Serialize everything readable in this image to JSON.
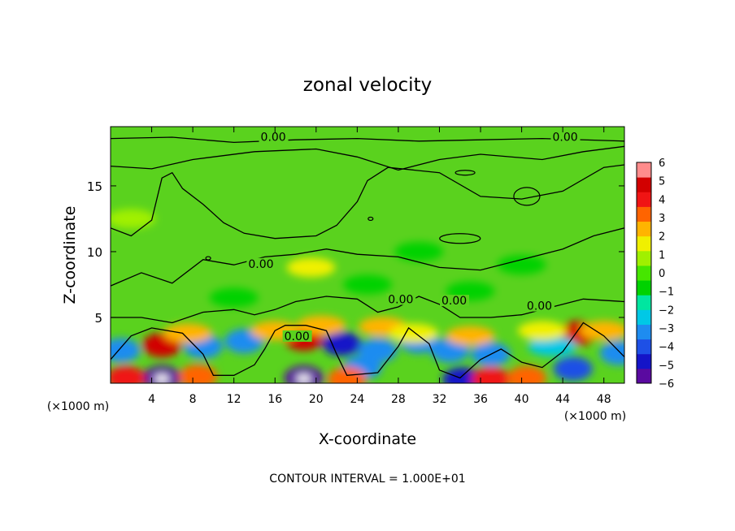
{
  "chart_data": {
    "type": "heatmap",
    "title": "zonal velocity",
    "xlabel": "X-coordinate",
    "ylabel": "Z-coordinate",
    "x_unit_left": "(×1000 m)",
    "x_unit_right": "(×1000 m)",
    "footer": "CONTOUR INTERVAL = 1.000E+01",
    "xlim": [
      0,
      50
    ],
    "ylim": [
      0,
      19.5
    ],
    "x_ticks": [
      4,
      8,
      12,
      16,
      20,
      24,
      28,
      32,
      36,
      40,
      44,
      48
    ],
    "y_ticks": [
      5,
      10,
      15
    ],
    "colorbar": {
      "min": -6,
      "max": 6,
      "labels": [
        "6",
        "5",
        "4",
        "3",
        "2",
        "1",
        "0",
        "−1",
        "−2",
        "−3",
        "−4",
        "−5",
        "−6"
      ],
      "colors": [
        "#5a0aa0",
        "#1414c8",
        "#1e50e6",
        "#1e8cf0",
        "#00c8e6",
        "#00e6a0",
        "#00d200",
        "#46e600",
        "#a0f000",
        "#f0f000",
        "#ffb400",
        "#ff6400",
        "#f01414",
        "#d20000",
        "#ff8c8c"
      ]
    },
    "contour_labels": [
      {
        "text": "0.00",
        "x": 14.6,
        "y": 18.55
      },
      {
        "text": "0.00",
        "x": 43.0,
        "y": 18.55
      },
      {
        "text": "0.00",
        "x": 13.4,
        "y": 8.9
      },
      {
        "text": "0.00",
        "x": 27.0,
        "y": 6.2
      },
      {
        "text": "0.00",
        "x": 32.2,
        "y": 6.1
      },
      {
        "text": "0.00",
        "x": 40.5,
        "y": 5.7
      },
      {
        "text": "0.00",
        "x": 16.9,
        "y": 3.4
      }
    ],
    "anomalies": [
      {
        "x": 5.0,
        "z": 2.9,
        "v": 4.8
      },
      {
        "x": 18.8,
        "z": 3.4,
        "v": 5.0
      },
      {
        "x": 45.5,
        "z": 3.8,
        "v": 4.5
      },
      {
        "x": 5.0,
        "z": 0.4,
        "v": -6.0
      },
      {
        "x": 18.8,
        "z": 0.4,
        "v": -6.0
      },
      {
        "x": 34.2,
        "z": 0.3,
        "v": -5.0
      },
      {
        "x": 1.0,
        "z": 2.5,
        "v": -3.5
      },
      {
        "x": 9.0,
        "z": 2.8,
        "v": -3.0
      },
      {
        "x": 13.0,
        "z": 3.2,
        "v": -3.0
      },
      {
        "x": 22.5,
        "z": 3.0,
        "v": -4.5
      },
      {
        "x": 26.0,
        "z": 2.5,
        "v": -3.0
      },
      {
        "x": 30.0,
        "z": 3.2,
        "v": -3.0
      },
      {
        "x": 33.0,
        "z": 2.5,
        "v": -3.5
      },
      {
        "x": 37.0,
        "z": 2.2,
        "v": -3.0
      },
      {
        "x": 43.0,
        "z": 2.8,
        "v": -2.5
      },
      {
        "x": 49.5,
        "z": 2.3,
        "v": -3.0
      },
      {
        "x": 45.0,
        "z": 1.1,
        "v": -4.0
      },
      {
        "x": 24.5,
        "z": 1.2,
        "v": -3.5
      },
      {
        "x": 1.5,
        "z": 0.4,
        "v": 4.0
      },
      {
        "x": 8.5,
        "z": 0.5,
        "v": 3.0
      },
      {
        "x": 23.0,
        "z": 0.3,
        "v": 3.5
      },
      {
        "x": 37.0,
        "z": 0.3,
        "v": 4.0
      },
      {
        "x": 40.5,
        "z": 0.4,
        "v": 3.5
      },
      {
        "x": 7.5,
        "z": 3.8,
        "v": 2.0
      },
      {
        "x": 16.0,
        "z": 4.0,
        "v": 2.2
      },
      {
        "x": 20.5,
        "z": 4.4,
        "v": 2.0
      },
      {
        "x": 26.5,
        "z": 4.3,
        "v": 2.5
      },
      {
        "x": 29.5,
        "z": 3.8,
        "v": 1.8
      },
      {
        "x": 35.0,
        "z": 3.6,
        "v": 2.2
      },
      {
        "x": 42.0,
        "z": 4.0,
        "v": 1.8
      },
      {
        "x": 48.0,
        "z": 4.0,
        "v": 2.0
      },
      {
        "x": 19.5,
        "z": 8.8,
        "v": 1.5
      },
      {
        "x": 2.0,
        "z": 12.5,
        "v": 0.6
      },
      {
        "x": 40.0,
        "z": 9.0,
        "v": -0.6
      },
      {
        "x": 30.0,
        "z": 10.0,
        "v": -0.4
      },
      {
        "x": 12.0,
        "z": 6.5,
        "v": -0.8
      },
      {
        "x": 35.0,
        "z": 7.0,
        "v": -0.7
      },
      {
        "x": 25.0,
        "z": 7.5,
        "v": -0.5
      }
    ]
  }
}
